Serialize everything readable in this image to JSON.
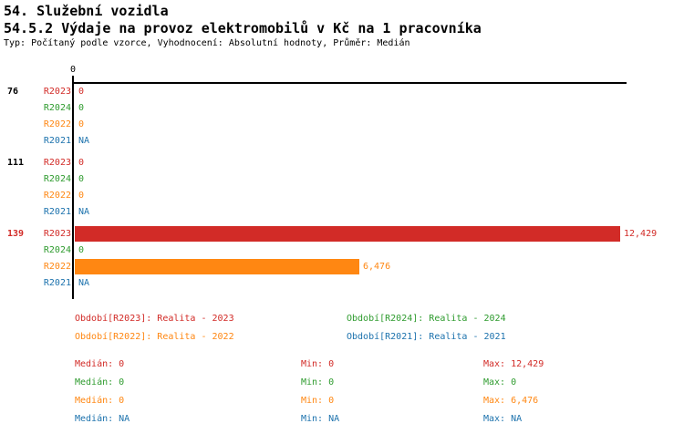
{
  "header": {
    "section_title": "54. Služební vozidla",
    "chart_title": "54.5.2 Výdaje na provoz elektromobilů v Kč na 1 pracovníka",
    "subtitle": "Typ: Počítaný podle vzorce, Vyhodnocení: Absolutní hodnoty, Průměr: Medián"
  },
  "colors": {
    "axis": "#000000",
    "highlight": "#d22b27"
  },
  "chart_data": {
    "type": "bar",
    "orientation": "horizontal",
    "axis": {
      "tick_label": "0",
      "xmin": 0,
      "xmax": 12429
    },
    "series_colors": {
      "R2023": "#d22b27",
      "R2024": "#2e9b2e",
      "R2022": "#ff8712",
      "R2021": "#1c72ad"
    },
    "groups": [
      {
        "label": "76",
        "label_color": "#000000",
        "rows": [
          {
            "series": "R2023",
            "value": 0,
            "display": "0"
          },
          {
            "series": "R2024",
            "value": 0,
            "display": "0"
          },
          {
            "series": "R2022",
            "value": 0,
            "display": "0"
          },
          {
            "series": "R2021",
            "value": null,
            "display": "NA"
          }
        ]
      },
      {
        "label": "111",
        "label_color": "#000000",
        "rows": [
          {
            "series": "R2023",
            "value": 0,
            "display": "0"
          },
          {
            "series": "R2024",
            "value": 0,
            "display": "0"
          },
          {
            "series": "R2022",
            "value": 0,
            "display": "0"
          },
          {
            "series": "R2021",
            "value": null,
            "display": "NA"
          }
        ]
      },
      {
        "label": "139",
        "label_color": "#d22b27",
        "rows": [
          {
            "series": "R2023",
            "value": 12429,
            "display": "12,429"
          },
          {
            "series": "R2024",
            "value": 0,
            "display": "0"
          },
          {
            "series": "R2022",
            "value": 6476,
            "display": "6,476"
          },
          {
            "series": "R2021",
            "value": null,
            "display": "NA"
          }
        ]
      }
    ]
  },
  "legend": {
    "items": [
      {
        "series": "R2023",
        "text": "Období[R2023]: Realita - 2023"
      },
      {
        "series": "R2024",
        "text": "Období[R2024]: Realita - 2024"
      },
      {
        "series": "R2022",
        "text": "Období[R2022]: Realita - 2022"
      },
      {
        "series": "R2021",
        "text": "Období[R2021]: Realita - 2021"
      }
    ]
  },
  "stats": [
    {
      "series": "R2023",
      "median": "Medián: 0",
      "min": "Min: 0",
      "max": "Max: 12,429"
    },
    {
      "series": "R2024",
      "median": "Medián: 0",
      "min": "Min: 0",
      "max": "Max: 0"
    },
    {
      "series": "R2022",
      "median": "Medián: 0",
      "min": "Min: 0",
      "max": "Max: 6,476"
    },
    {
      "series": "R2021",
      "median": "Medián: NA",
      "min": "Min: NA",
      "max": "Max: NA"
    }
  ]
}
